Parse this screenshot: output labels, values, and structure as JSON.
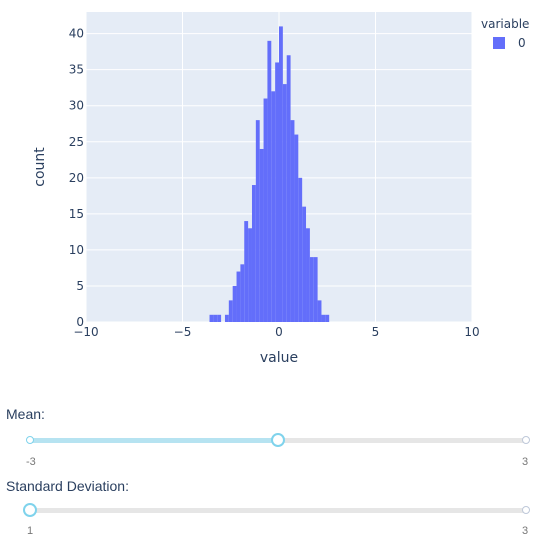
{
  "chart_data": {
    "type": "bar",
    "xlabel": "value",
    "ylabel": "count",
    "xlim": [
      -10,
      10
    ],
    "ylim": [
      0,
      43
    ],
    "x_ticks": [
      -10,
      -5,
      0,
      5,
      10
    ],
    "y_ticks": [
      0,
      5,
      10,
      15,
      20,
      25,
      30,
      35,
      40
    ],
    "bin_width": 0.2,
    "grid": true,
    "legend": {
      "title": "variable",
      "position": "top-right",
      "entries": [
        {
          "label": "0",
          "color": "#636efa"
        }
      ]
    },
    "series": [
      {
        "name": "0",
        "color": "#636efa",
        "bins": [
          {
            "x0": -3.6,
            "x1": -3.4,
            "count": 1
          },
          {
            "x0": -3.4,
            "x1": -3.2,
            "count": 1
          },
          {
            "x0": -3.2,
            "x1": -3.0,
            "count": 1
          },
          {
            "x0": -2.8,
            "x1": -2.6,
            "count": 1
          },
          {
            "x0": -2.6,
            "x1": -2.4,
            "count": 3
          },
          {
            "x0": -2.4,
            "x1": -2.2,
            "count": 5
          },
          {
            "x0": -2.2,
            "x1": -2.0,
            "count": 7
          },
          {
            "x0": -2.0,
            "x1": -1.8,
            "count": 8
          },
          {
            "x0": -1.8,
            "x1": -1.6,
            "count": 14
          },
          {
            "x0": -1.6,
            "x1": -1.4,
            "count": 13
          },
          {
            "x0": -1.4,
            "x1": -1.2,
            "count": 19
          },
          {
            "x0": -1.2,
            "x1": -1.0,
            "count": 28
          },
          {
            "x0": -1.0,
            "x1": -0.8,
            "count": 24
          },
          {
            "x0": -0.8,
            "x1": -0.6,
            "count": 31
          },
          {
            "x0": -0.6,
            "x1": -0.4,
            "count": 39
          },
          {
            "x0": -0.4,
            "x1": -0.2,
            "count": 32
          },
          {
            "x0": -0.2,
            "x1": 0.0,
            "count": 36
          },
          {
            "x0": 0.0,
            "x1": 0.2,
            "count": 41
          },
          {
            "x0": 0.2,
            "x1": 0.4,
            "count": 33
          },
          {
            "x0": 0.4,
            "x1": 0.6,
            "count": 37
          },
          {
            "x0": 0.6,
            "x1": 0.8,
            "count": 28
          },
          {
            "x0": 0.8,
            "x1": 1.0,
            "count": 26
          },
          {
            "x0": 1.0,
            "x1": 1.2,
            "count": 20
          },
          {
            "x0": 1.2,
            "x1": 1.4,
            "count": 16
          },
          {
            "x0": 1.4,
            "x1": 1.6,
            "count": 13
          },
          {
            "x0": 1.6,
            "x1": 1.8,
            "count": 9
          },
          {
            "x0": 1.8,
            "x1": 2.0,
            "count": 9
          },
          {
            "x0": 2.0,
            "x1": 2.2,
            "count": 3
          },
          {
            "x0": 2.2,
            "x1": 2.4,
            "count": 1
          },
          {
            "x0": 2.4,
            "x1": 2.6,
            "count": 1
          }
        ]
      }
    ]
  },
  "controls": {
    "mean": {
      "label": "Mean:",
      "min": -3,
      "max": 3,
      "value": 0,
      "min_label": "-3",
      "max_label": "3"
    },
    "std": {
      "label": "Standard Deviation:",
      "min": 1,
      "max": 3,
      "value": 1,
      "min_label": "1",
      "max_label": "3"
    }
  },
  "colors": {
    "plot_bg": "#e5ecf6",
    "bar": "#636efa",
    "grid": "#ffffff",
    "text": "#2a3f5f",
    "slider_accent": "#7fd3ec"
  }
}
